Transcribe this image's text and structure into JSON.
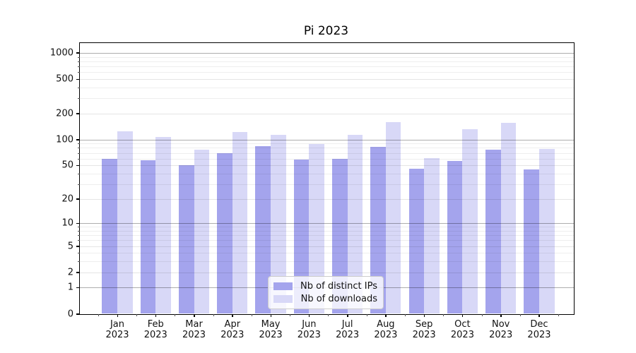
{
  "title": "Pi 2023",
  "chart_data": {
    "type": "bar",
    "title": "Pi 2023",
    "categories": [
      "Jan 2023",
      "Feb 2023",
      "Mar 2023",
      "Apr 2023",
      "May 2023",
      "Jun 2023",
      "Jul 2023",
      "Aug 2023",
      "Sep 2023",
      "Oct 2023",
      "Nov 2023",
      "Dec 2023"
    ],
    "month_labels": [
      "Jan",
      "Feb",
      "Mar",
      "Apr",
      "May",
      "Jun",
      "Jul",
      "Aug",
      "Sep",
      "Oct",
      "Nov",
      "Dec"
    ],
    "year_label": "2023",
    "series": [
      {
        "name": "Nb of distinct IPs",
        "color": "#a4a4ed",
        "values": [
          60,
          57,
          50,
          69,
          84,
          58,
          60,
          82,
          46,
          56,
          76,
          45
        ]
      },
      {
        "name": "Nb of downloads",
        "color": "#d8d8f7",
        "values": [
          124,
          108,
          76,
          122,
          114,
          89,
          113,
          158,
          61,
          132,
          156,
          77
        ]
      }
    ],
    "xlabel": "",
    "ylabel": "",
    "yscale": "log1p",
    "yticks": [
      0,
      1,
      2,
      5,
      10,
      20,
      50,
      100,
      200,
      500,
      1000
    ],
    "ytick_labels": [
      "0",
      "1",
      "2",
      "5",
      "10",
      "20",
      "50",
      "100",
      "200",
      "500",
      "1000"
    ],
    "ylim": [
      0,
      1300
    ],
    "grid": true,
    "legend_position": "lower center"
  }
}
